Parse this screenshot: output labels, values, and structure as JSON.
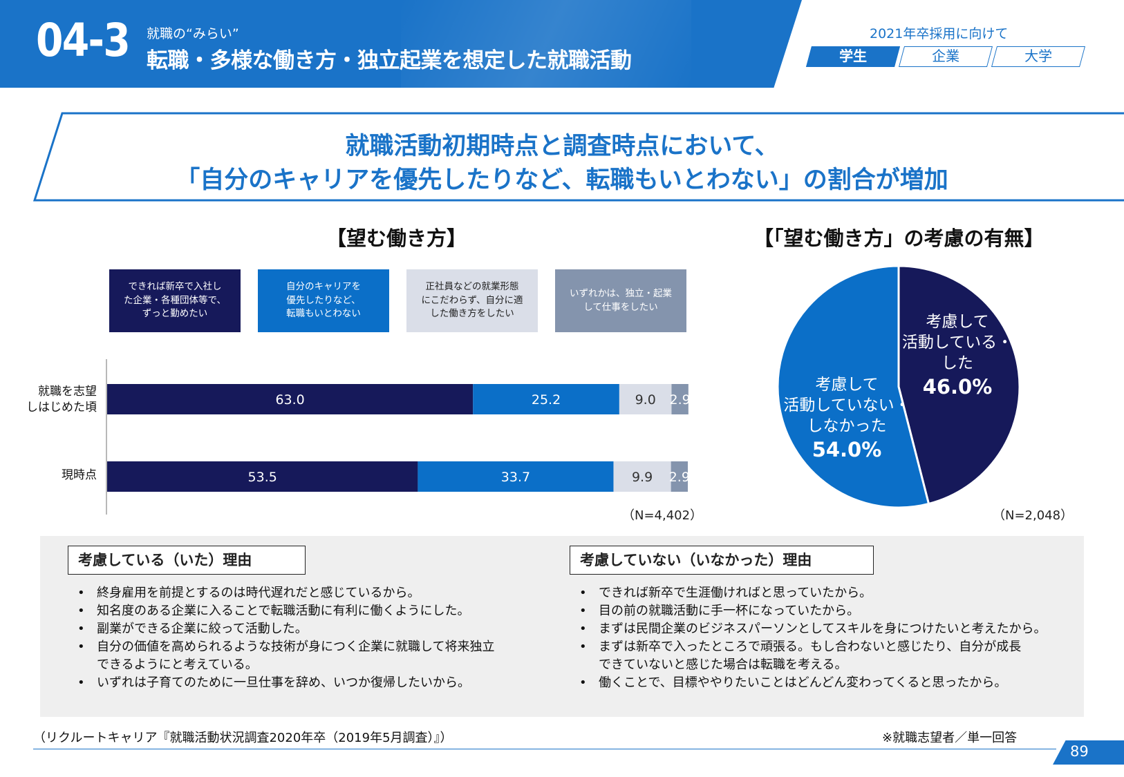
{
  "header": {
    "section_number": "04-3",
    "kicker": "就職の“みらい”",
    "title": "転職・多様な働き方・独立起業を想定した就職活動",
    "publication": "2021年卒採用に向けて",
    "audience_tabs": [
      {
        "label": "学生",
        "active": true
      },
      {
        "label": "企業",
        "active": false
      },
      {
        "label": "大学",
        "active": false
      }
    ]
  },
  "headline": {
    "line1": "就職活動初期時点と調査時点において、",
    "line2": "「自分のキャリアを優先したりなど、転職もいとわない」の割合が増加"
  },
  "chart_data": [
    {
      "type": "bar",
      "orientation": "horizontal-stacked",
      "title": "【望む働き方】",
      "categories": [
        "就職を志望\nしはじめた頃",
        "現時点"
      ],
      "series": [
        {
          "name": "できれば新卒で入社した企業・各種団体等で、ずっと勤めたい",
          "color": "#16195a",
          "values": [
            63.0,
            53.5
          ]
        },
        {
          "name": "自分のキャリアを優先したりなど、転職もいとわない",
          "color": "#0b6fc8",
          "values": [
            25.2,
            33.7
          ]
        },
        {
          "name": "正社員などの就業形態にこだわらず、自分に適した働き方をしたい",
          "color": "#dadee8",
          "values": [
            9.0,
            9.9
          ]
        },
        {
          "name": "いずれかは、独立・起業して仕事をしたい",
          "color": "#8494ad",
          "values": [
            2.9,
            2.9
          ]
        }
      ],
      "value_labels": [
        [
          "63.0",
          "25.2",
          "9.0",
          "2.9"
        ],
        [
          "53.5",
          "33.7",
          "9.9",
          "2.9"
        ]
      ],
      "legend_labels": [
        "できれば新卒で入社し\nた企業・各種団体等で、\nずっと勤めたい",
        "自分のキャリアを\n優先したりなど、\n転職もいとわない",
        "正社員などの就業形態\nにこだわらず、自分に適\nした働き方をしたい",
        "いずれかは、独立・起業\nして仕事をしたい"
      ],
      "legend_placement": "top",
      "xlim": [
        0,
        100
      ],
      "note": "（N=4,402）"
    },
    {
      "type": "pie",
      "title": "【「望む働き方」の考慮の有無】",
      "slices": [
        {
          "label": "考慮して\n活動している・\nした",
          "value": 46.0,
          "display": "46.0%",
          "color": "#16195a"
        },
        {
          "label": "考慮して\n活動していない・\nしなかった",
          "value": 54.0,
          "display": "54.0%",
          "color": "#0b6fc8"
        }
      ],
      "note": "（N=2,048）"
    }
  ],
  "reasons": {
    "considered": {
      "heading": "考慮している（いた）理由",
      "items": [
        "終身雇用を前提とするのは時代遅れだと感じているから。",
        "知名度のある企業に入ることで転職活動に有利に働くようにした。",
        "副業ができる企業に絞って活動した。",
        "自分の価値を高められるような技術が身につく企業に就職して将来独立\nできるようにと考えている。",
        "いずれは子育てのために一旦仕事を辞め、いつか復帰したいから。"
      ]
    },
    "not_considered": {
      "heading": "考慮していない（いなかった）理由",
      "items": [
        "できれば新卒で生涯働ければと思っていたから。",
        "目の前の就職活動に手一杯になっていたから。",
        "まずは民間企業のビジネスパーソンとしてスキルを身につけたいと考えたから。",
        "まずは新卒で入ったところで頑張る。もし合わないと感じたり、自分が成長\nできていないと感じた場合は転職を考える。",
        "働くことで、目標ややりたいことはどんどん変わってくると思ったから。"
      ]
    }
  },
  "footer": {
    "source": "（リクルートキャリア『就職活動状況調査2020年卒（2019年5月調査）』）",
    "note": "※就職志望者／単一回答",
    "page_number": "89"
  },
  "colors": {
    "brand": "#1a73c8",
    "navy": "#16195a",
    "blue": "#0b6fc8",
    "light": "#dadee8",
    "slate": "#8494ad"
  }
}
